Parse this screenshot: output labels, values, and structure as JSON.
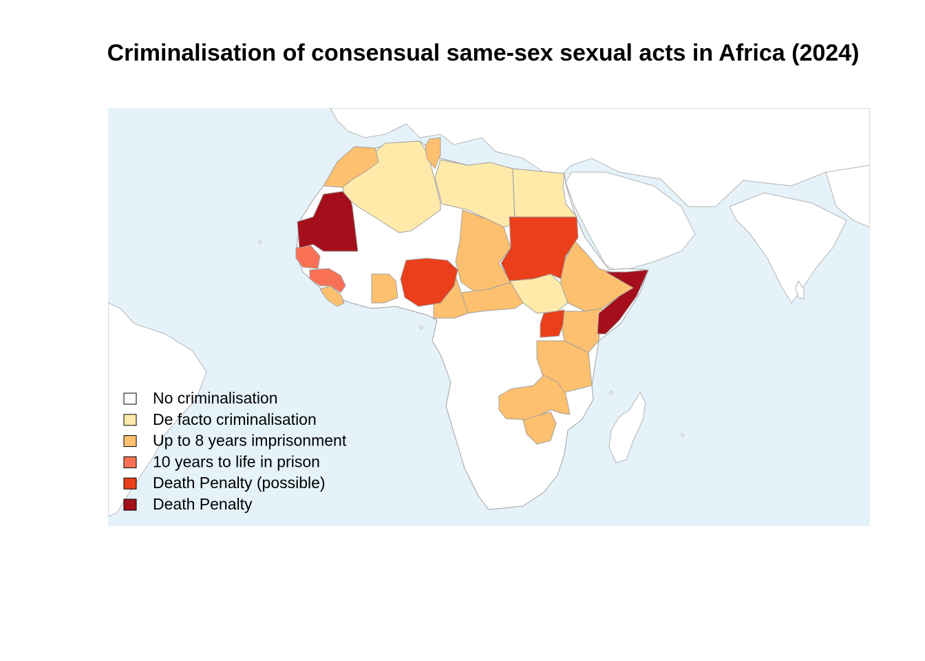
{
  "title": "Criminalisation of consensual same-sex sexual acts in Africa (2024)",
  "colors": {
    "ocean": "#e5f2fa",
    "none": "#ffffff",
    "defacto": "#ffeaaa",
    "upto8": "#fdc06e",
    "tenlife": "#f97155",
    "deathpossible": "#ea3f1a",
    "death": "#a50f1c"
  },
  "legend": [
    {
      "label": "No criminalisation",
      "color": "#ffffff"
    },
    {
      "label": "De facto criminalisation",
      "color": "#ffeaaa"
    },
    {
      "label": "Up to 8 years imprisonment",
      "color": "#fdc06e"
    },
    {
      "label": "10 years to life in prison",
      "color": "#f97155"
    },
    {
      "label": "Death Penalty (possible)",
      "color": "#ea3f1a"
    },
    {
      "label": "Death Penalty",
      "color": "#a50f1c"
    }
  ]
}
